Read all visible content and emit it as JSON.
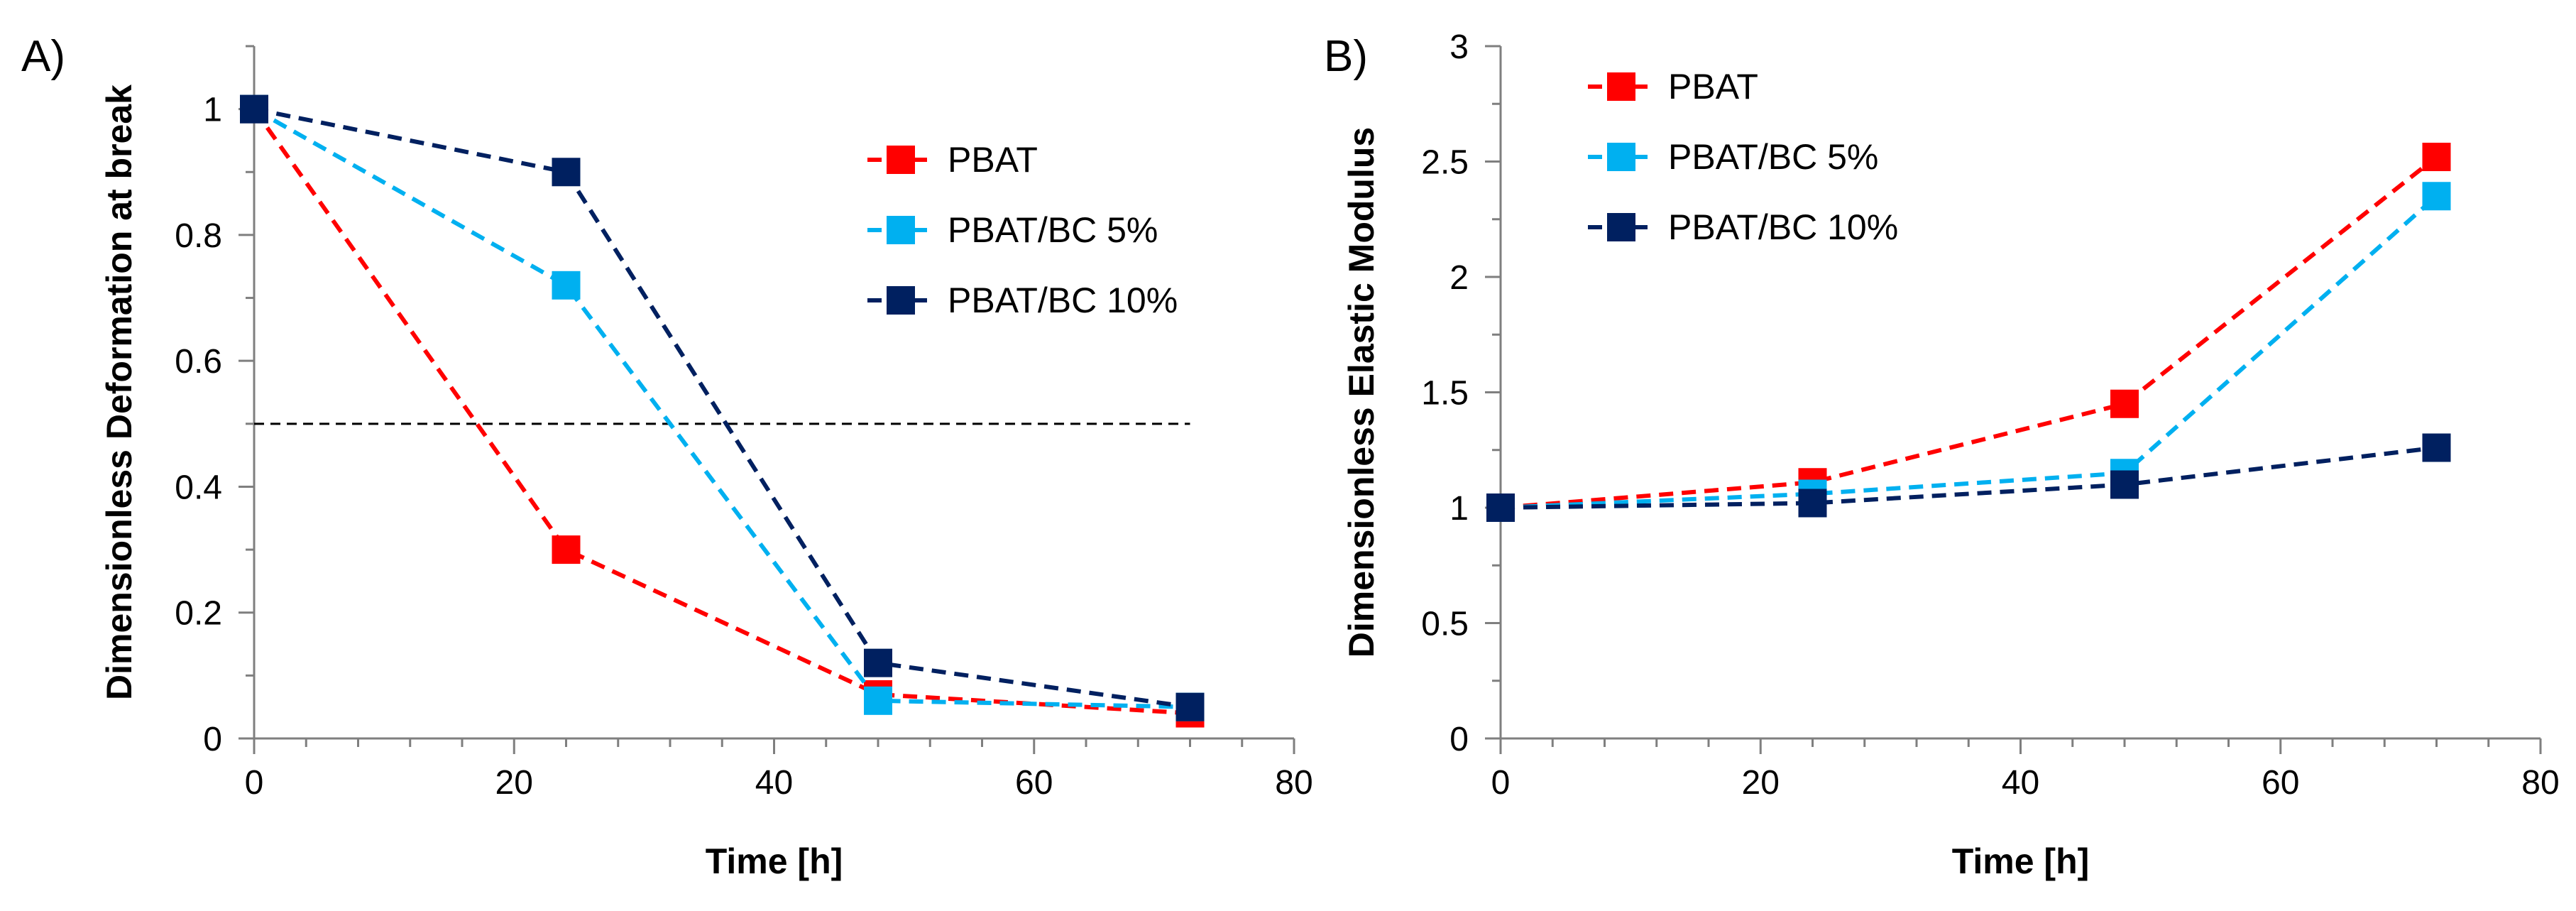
{
  "chart_data": [
    {
      "type": "line",
      "panel_label": "A)",
      "title": "",
      "xlabel": "Time [h]",
      "ylabel": "Dimensionless Deformation at break",
      "xlim": [
        0,
        80
      ],
      "ylim": [
        0,
        1.1
      ],
      "x_ticks": [
        0,
        20,
        40,
        60,
        80
      ],
      "y_ticks": [
        0,
        0.2,
        0.4,
        0.6,
        0.8,
        1
      ],
      "x_tick_labels": [
        "0",
        "20",
        "40",
        "60",
        "80"
      ],
      "y_tick_labels": [
        "0",
        "0.2",
        "0.4",
        "0.6",
        "0.8",
        "1"
      ],
      "grid": false,
      "legend_position": "top-right",
      "reference_line": {
        "y": 0.5,
        "x_range": [
          0,
          72
        ]
      },
      "series": [
        {
          "name": "PBAT",
          "color": "#ff0000",
          "x": [
            0,
            24,
            48,
            72
          ],
          "y": [
            1.0,
            0.3,
            0.07,
            0.04
          ]
        },
        {
          "name": "PBAT/BC 5%",
          "color": "#00b0f0",
          "x": [
            0,
            24,
            48,
            72
          ],
          "y": [
            1.0,
            0.72,
            0.06,
            0.05
          ]
        },
        {
          "name": "PBAT/BC 10%",
          "color": "#002060",
          "x": [
            0,
            24,
            48,
            72
          ],
          "y": [
            1.0,
            0.9,
            0.12,
            0.05
          ]
        }
      ]
    },
    {
      "type": "line",
      "panel_label": "B)",
      "title": "",
      "xlabel": "Time [h]",
      "ylabel": "Dimensionless Elastic Modulus",
      "xlim": [
        0,
        80
      ],
      "ylim": [
        0,
        3
      ],
      "x_ticks": [
        0,
        20,
        40,
        60,
        80
      ],
      "y_ticks": [
        0,
        0.5,
        1,
        1.5,
        2,
        2.5,
        3
      ],
      "x_tick_labels": [
        "0",
        "20",
        "40",
        "60",
        "80"
      ],
      "y_tick_labels": [
        "0",
        "0.5",
        "1",
        "1.5",
        "2",
        "2.5",
        "3"
      ],
      "grid": false,
      "legend_position": "top-left",
      "series": [
        {
          "name": "PBAT",
          "color": "#ff0000",
          "x": [
            0,
            24,
            48,
            72
          ],
          "y": [
            1.0,
            1.11,
            1.45,
            2.52
          ]
        },
        {
          "name": "PBAT/BC 5%",
          "color": "#00b0f0",
          "x": [
            0,
            24,
            48,
            72
          ],
          "y": [
            1.0,
            1.06,
            1.15,
            2.35
          ]
        },
        {
          "name": "PBAT/BC 10%",
          "color": "#002060",
          "x": [
            0,
            24,
            48,
            72
          ],
          "y": [
            1.0,
            1.02,
            1.1,
            1.26
          ]
        }
      ]
    }
  ]
}
